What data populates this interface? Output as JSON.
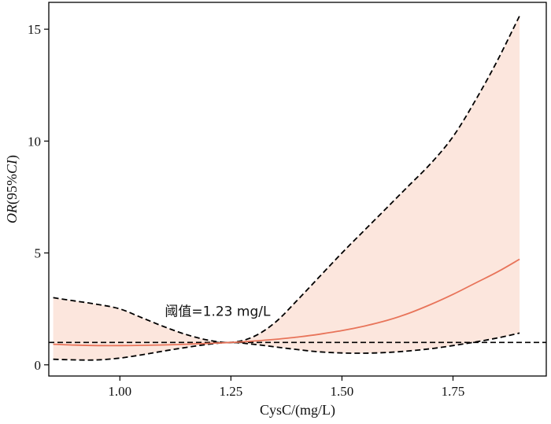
{
  "chart_data": {
    "type": "line",
    "xlabel": "CysC/(mg/L)",
    "ylabel": {
      "italic_part": "OR",
      "plain_open": "(95%",
      "italic_ci": "CI",
      "plain_close": ")"
    },
    "xlim": [
      0.84,
      1.96
    ],
    "ylim": [
      -0.5,
      16.2
    ],
    "x_ticks": [
      1.0,
      1.25,
      1.5,
      1.75
    ],
    "x_tick_labels": [
      "1.00",
      "1.25",
      "1.50",
      "1.75"
    ],
    "y_ticks": [
      0,
      5,
      10,
      15
    ],
    "y_tick_labels": [
      "0",
      "5",
      "10",
      "15"
    ],
    "reference_line_y": 1,
    "annotation": "阈值=1.23 mg/L",
    "annotation_anchor": {
      "x": 1.22,
      "y": 2.4
    },
    "grid": false,
    "colors": {
      "estimate": "#e8745a",
      "band": "#fce6dd",
      "bounds": "#000000",
      "reference": "#000000"
    },
    "series": [
      {
        "role": "estimate",
        "style": "solid",
        "x": [
          0.85,
          0.9,
          0.95,
          1.0,
          1.05,
          1.1,
          1.15,
          1.2,
          1.25,
          1.3,
          1.35,
          1.4,
          1.45,
          1.5,
          1.55,
          1.6,
          1.65,
          1.7,
          1.75,
          1.8,
          1.85,
          1.9
        ],
        "y": [
          0.92,
          0.88,
          0.86,
          0.86,
          0.87,
          0.89,
          0.92,
          0.96,
          1.0,
          1.06,
          1.14,
          1.24,
          1.37,
          1.53,
          1.73,
          1.98,
          2.3,
          2.7,
          3.15,
          3.65,
          4.15,
          4.72
        ]
      },
      {
        "role": "upper",
        "style": "dashed",
        "x": [
          0.85,
          0.9,
          0.95,
          1.0,
          1.05,
          1.1,
          1.15,
          1.2,
          1.25,
          1.3,
          1.35,
          1.4,
          1.45,
          1.5,
          1.55,
          1.6,
          1.65,
          1.7,
          1.75,
          1.8,
          1.85,
          1.9
        ],
        "y": [
          3.0,
          2.85,
          2.7,
          2.5,
          2.1,
          1.7,
          1.35,
          1.1,
          1.0,
          1.25,
          1.9,
          2.9,
          3.95,
          5.0,
          6.0,
          7.0,
          8.0,
          9.0,
          10.2,
          11.8,
          13.6,
          15.6
        ]
      },
      {
        "role": "lower",
        "style": "dashed",
        "x": [
          0.85,
          0.9,
          0.95,
          1.0,
          1.05,
          1.1,
          1.15,
          1.2,
          1.25,
          1.3,
          1.35,
          1.4,
          1.45,
          1.5,
          1.55,
          1.6,
          1.65,
          1.7,
          1.75,
          1.8,
          1.85,
          1.9
        ],
        "y": [
          0.25,
          0.22,
          0.22,
          0.3,
          0.45,
          0.62,
          0.78,
          0.92,
          1.0,
          0.92,
          0.8,
          0.68,
          0.58,
          0.53,
          0.52,
          0.55,
          0.62,
          0.72,
          0.86,
          1.02,
          1.2,
          1.42
        ]
      }
    ]
  }
}
